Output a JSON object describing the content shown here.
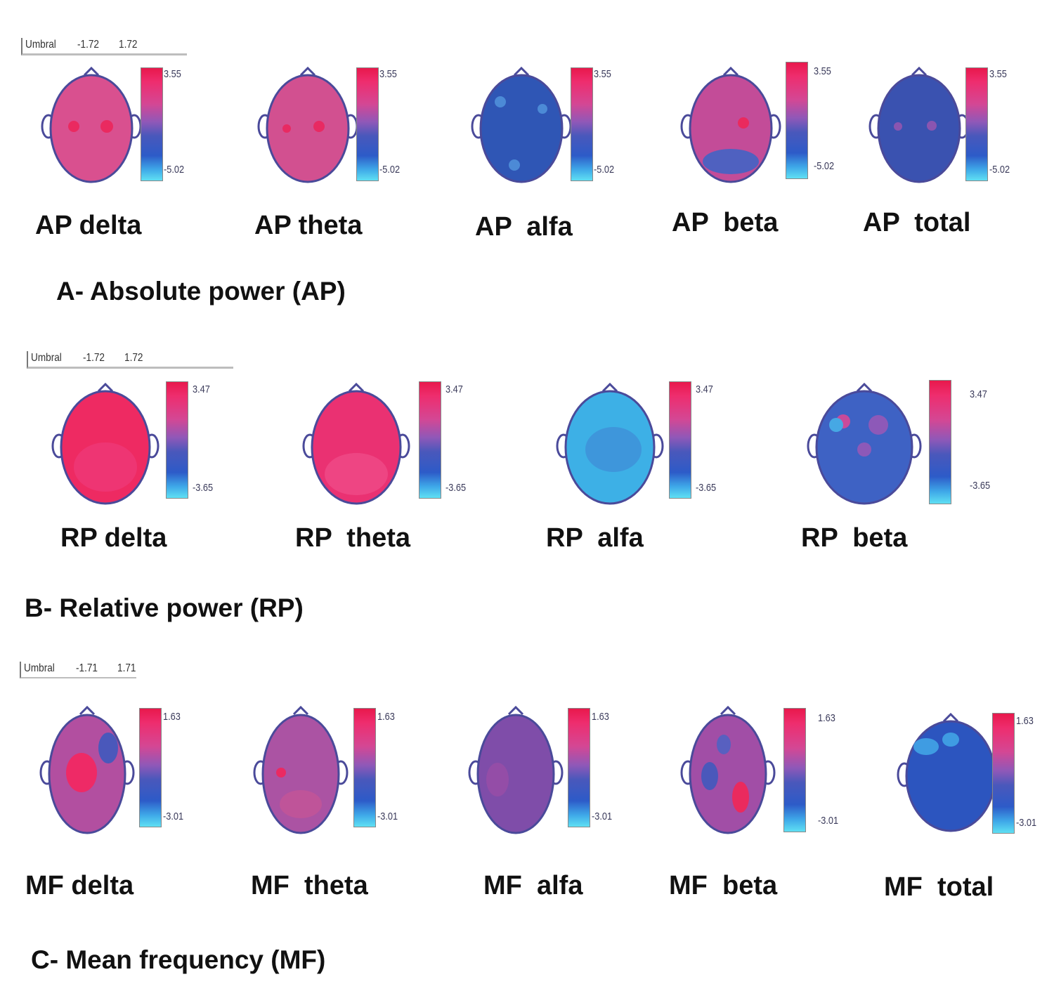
{
  "sections": [
    {
      "id": "A",
      "title": "A- Absolute power (AP)",
      "threshold": {
        "label": "Umbral",
        "low": "-1.72",
        "high": "1.72"
      },
      "maps": [
        {
          "label": "AP delta",
          "scale_max": "3.55",
          "scale_min": "-5.02",
          "dominant_color": "#d9508f"
        },
        {
          "label": "AP theta",
          "scale_max": "3.55",
          "scale_min": "-5.02",
          "dominant_color": "#d25090"
        },
        {
          "label": "AP  alfa",
          "scale_max": "3.55",
          "scale_min": "-5.02",
          "dominant_color": "#2f56b5"
        },
        {
          "label": "AP  beta",
          "scale_max": "3.55",
          "scale_min": "-5.02",
          "dominant_color": "#c34c98"
        },
        {
          "label": "AP  total",
          "scale_max": "3.55",
          "scale_min": "-5.02",
          "dominant_color": "#3a52b0"
        }
      ]
    },
    {
      "id": "B",
      "title": "B- Relative power (RP)",
      "threshold": {
        "label": "Umbral",
        "low": "-1.72",
        "high": "1.72"
      },
      "maps": [
        {
          "label": "RP delta",
          "scale_max": "3.47",
          "scale_min": "-3.65",
          "dominant_color": "#ee2a62"
        },
        {
          "label": "RP  theta",
          "scale_max": "3.47",
          "scale_min": "-3.65",
          "dominant_color": "#ea3172"
        },
        {
          "label": "RP  alfa",
          "scale_max": "3.47",
          "scale_min": "-3.65",
          "dominant_color": "#3db0e6"
        },
        {
          "label": "RP  beta",
          "scale_max": "3.47",
          "scale_min": "-3.65",
          "dominant_color": "#3e62c4"
        }
      ]
    },
    {
      "id": "C",
      "title": "C- Mean frequency (MF)",
      "threshold": {
        "label": "Umbral",
        "low": "-1.71",
        "high": "1.71"
      },
      "maps": [
        {
          "label": "MF delta",
          "scale_max": "1.63",
          "scale_min": "-3.01",
          "dominant_color": "#b24fa0"
        },
        {
          "label": "MF  theta",
          "scale_max": "1.63",
          "scale_min": "-3.01",
          "dominant_color": "#ab53a3"
        },
        {
          "label": "MF  alfa",
          "scale_max": "1.63",
          "scale_min": "-3.01",
          "dominant_color": "#7f4da9"
        },
        {
          "label": "MF  beta",
          "scale_max": "1.63",
          "scale_min": "-3.01",
          "dominant_color": "#a14ea6"
        },
        {
          "label": "MF  total",
          "scale_max": "1.63",
          "scale_min": "-3.01",
          "dominant_color": "#2c55bf"
        }
      ]
    }
  ]
}
